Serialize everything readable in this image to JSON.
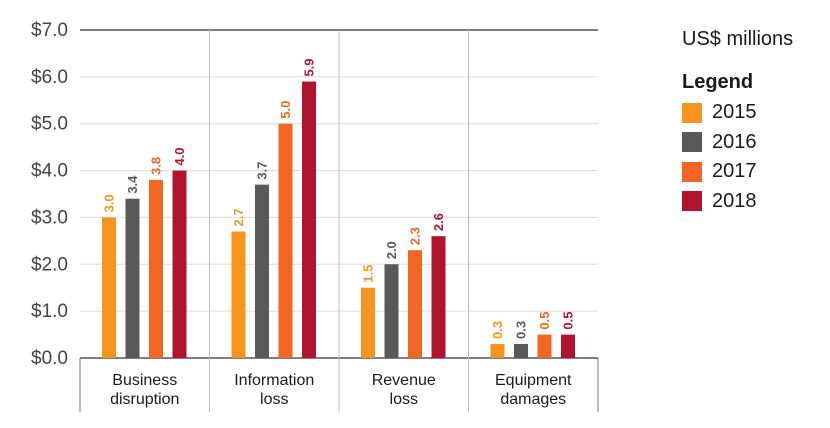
{
  "chart_data": {
    "type": "bar",
    "units": "US$ millions",
    "categories": [
      [
        "Business",
        "disruption"
      ],
      [
        "Information",
        "loss"
      ],
      [
        "Revenue",
        "loss"
      ],
      [
        "Equipment",
        "damages"
      ]
    ],
    "series": [
      {
        "name": "2015",
        "color": "#F7941D",
        "values": [
          3.0,
          2.7,
          1.5,
          0.3
        ],
        "labels": [
          "3.0",
          "2.7",
          "1.5",
          "0.3"
        ]
      },
      {
        "name": "2016",
        "color": "#595959",
        "values": [
          3.4,
          3.7,
          2.0,
          0.3
        ],
        "labels": [
          "3.4",
          "3.7",
          "2.0",
          "0.3"
        ]
      },
      {
        "name": "2017",
        "color": "#F26522",
        "values": [
          3.8,
          5.0,
          2.3,
          0.5
        ],
        "labels": [
          "3.8",
          "5.0",
          "2.3",
          "0.5"
        ]
      },
      {
        "name": "2018",
        "color": "#B0142E",
        "values": [
          4.0,
          5.9,
          2.6,
          0.5
        ],
        "labels": [
          "4.0",
          "5.9",
          "2.6",
          "0.5"
        ]
      }
    ],
    "y_ticks": [
      "$0.0",
      "$1.0",
      "$2.0",
      "$3.0",
      "$4.0",
      "$5.0",
      "$6.0",
      "$7.0"
    ],
    "ylim": [
      0,
      7
    ],
    "grid": true,
    "legend_title": "Legend",
    "legend_position": "right"
  }
}
